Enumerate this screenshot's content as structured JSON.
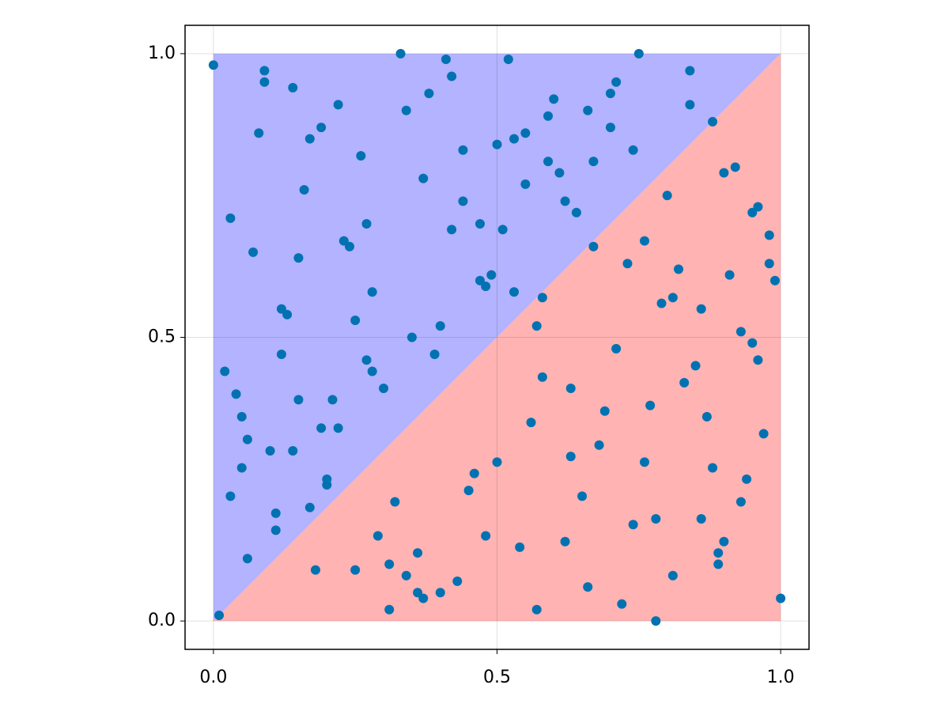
{
  "chart_data": {
    "type": "scatter",
    "xlim": [
      -0.05,
      1.05
    ],
    "ylim": [
      -0.05,
      1.05
    ],
    "xticks": [
      {
        "value": 0,
        "label": "0.0"
      },
      0.5,
      {
        "value": 1,
        "label": "1.0"
      }
    ],
    "yticks": [
      {
        "value": 0,
        "label": "0.0"
      },
      0.5,
      {
        "value": 1,
        "label": "1.0"
      }
    ],
    "grid": true,
    "areas": [
      {
        "color": "#b3b3ff",
        "x": [
          0,
          0,
          1
        ],
        "y": [
          0,
          1,
          1
        ]
      },
      {
        "color": "#ffb3b3",
        "x": [
          0,
          1,
          1
        ],
        "y": [
          0,
          0,
          1
        ]
      }
    ],
    "points": {
      "color": "#0072b2",
      "x": [
        0.0,
        0.33,
        0.78,
        0.01,
        1.0,
        0.52,
        0.75,
        0.12,
        0.45,
        0.67,
        0.89,
        0.23,
        0.56,
        0.34,
        0.91,
        0.05,
        0.71,
        0.18,
        0.62,
        0.4,
        0.97,
        0.08,
        0.29,
        0.83,
        0.51,
        0.14,
        0.66,
        0.37,
        0.94,
        0.21,
        0.58,
        0.03,
        0.86,
        0.44,
        0.27,
        0.73,
        0.1,
        0.6,
        0.81,
        0.48,
        0.16,
        0.95,
        0.32,
        0.69,
        0.07,
        0.54,
        0.88,
        0.25,
        0.42,
        0.76,
        0.02,
        0.64,
        0.36,
        0.92,
        0.19,
        0.49,
        0.84,
        0.11,
        0.7,
        0.3,
        0.57,
        0.98,
        0.22,
        0.46,
        0.79,
        0.06,
        0.61,
        0.39,
        0.87,
        0.15,
        0.53,
        0.74,
        0.28,
        0.96,
        0.43,
        0.09,
        0.68,
        0.35,
        0.82,
        0.2,
        0.59,
        0.04,
        0.9,
        0.47,
        0.26,
        0.72,
        0.13,
        0.63,
        0.38,
        0.85,
        0.17,
        0.55,
        0.99,
        0.31,
        0.77,
        0.5,
        0.24,
        0.65,
        0.41,
        0.93,
        0.11,
        0.58,
        0.8,
        0.34,
        0.06,
        0.71,
        0.47,
        0.88,
        0.19,
        0.62,
        0.27,
        0.96,
        0.4,
        0.74,
        0.03,
        0.53,
        0.84,
        0.15,
        0.67,
        0.36,
        0.9,
        0.22,
        0.57,
        0.09,
        0.78,
        0.44,
        0.31,
        0.98,
        0.63,
        0.17,
        0.5,
        0.86,
        0.25,
        0.7,
        0.12,
        0.42,
        0.93,
        0.59,
        0.05,
        0.81,
        0.37,
        0.66,
        0.2,
        0.95,
        0.48,
        0.28,
        0.76,
        0.14,
        0.55,
        0.89
      ],
      "y": [
        0.98,
        1.0,
        0.0,
        0.01,
        0.04,
        0.99,
        1.0,
        0.55,
        0.23,
        0.81,
        0.12,
        0.67,
        0.35,
        0.9,
        0.61,
        0.27,
        0.48,
        0.09,
        0.74,
        0.52,
        0.33,
        0.86,
        0.15,
        0.42,
        0.69,
        0.94,
        0.06,
        0.78,
        0.25,
        0.39,
        0.57,
        0.71,
        0.18,
        0.83,
        0.46,
        0.63,
        0.3,
        0.92,
        0.08,
        0.59,
        0.76,
        0.49,
        0.21,
        0.37,
        0.65,
        0.13,
        0.88,
        0.53,
        0.96,
        0.28,
        0.44,
        0.72,
        0.05,
        0.8,
        0.34,
        0.61,
        0.97,
        0.19,
        0.87,
        0.41,
        0.02,
        0.68,
        0.91,
        0.26,
        0.56,
        0.11,
        0.79,
        0.47,
        0.36,
        0.64,
        0.85,
        0.17,
        0.58,
        0.73,
        0.07,
        0.95,
        0.31,
        0.5,
        0.62,
        0.24,
        0.89,
        0.4,
        0.14,
        0.7,
        0.82,
        0.03,
        0.54,
        0.29,
        0.93,
        0.45,
        0.2,
        0.77,
        0.6,
        0.1,
        0.38,
        0.84,
        0.66,
        0.22,
        0.99,
        0.51,
        0.16,
        0.43,
        0.75,
        0.08,
        0.32,
        0.95,
        0.6,
        0.27,
        0.87,
        0.14,
        0.7,
        0.46,
        0.05,
        0.83,
        0.22,
        0.58,
        0.91,
        0.39,
        0.66,
        0.12,
        0.79,
        0.34,
        0.52,
        0.97,
        0.18,
        0.74,
        0.02,
        0.63,
        0.41,
        0.85,
        0.28,
        0.55,
        0.09,
        0.93,
        0.47,
        0.69,
        0.21,
        0.81,
        0.36,
        0.57,
        0.04,
        0.9,
        0.25,
        0.72,
        0.15,
        0.44,
        0.67,
        0.3,
        0.86,
        0.1
      ]
    }
  }
}
